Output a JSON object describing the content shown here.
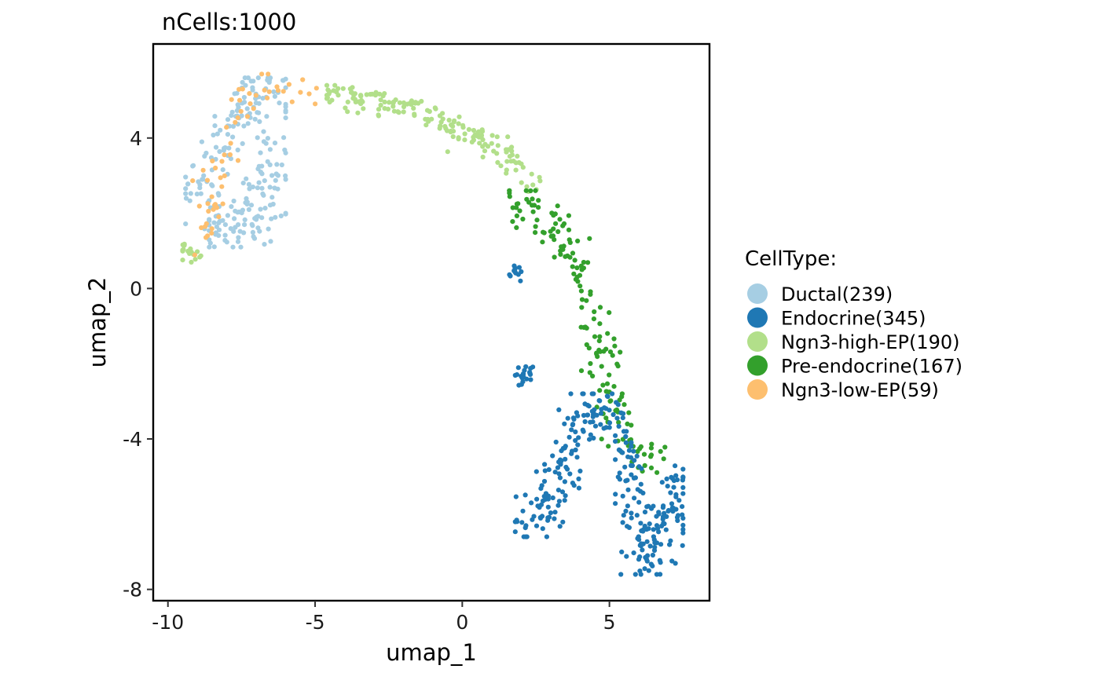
{
  "chart_data": {
    "type": "scatter",
    "title": "nCells:1000",
    "xlabel": "umap_1",
    "ylabel": "umap_2",
    "xlim": [
      -10.5,
      8.4
    ],
    "ylim": [
      -8.3,
      6.5
    ],
    "xticks": [
      -10,
      -5,
      0,
      5
    ],
    "yticks": [
      4,
      0,
      -4,
      -8
    ],
    "xtick_labels": [
      "-10",
      "-5",
      "0",
      "5"
    ],
    "ytick_labels": [
      "4",
      "0",
      "-4",
      "-8"
    ],
    "grid": false,
    "legend_position": "right",
    "legend_title": "CellType:",
    "n_points_total": 1000,
    "series": [
      {
        "name": "Ductal(239)",
        "color": "#A6CEE3",
        "count": 239
      },
      {
        "name": "Endocrine(345)",
        "color": "#1F78B4",
        "count": 345
      },
      {
        "name": "Ngn3-high-EP(190)",
        "color": "#B2DF8A",
        "count": 190
      },
      {
        "name": "Pre-endocrine(167)",
        "color": "#33A02C",
        "count": 167
      },
      {
        "name": "Ngn3-low-EP(59)",
        "color": "#FDBF6F",
        "count": 59
      }
    ],
    "clusters": [
      {
        "series": 0,
        "n": 120,
        "x": [
          -9.4,
          -6.0
        ],
        "y": [
          1.2,
          5.6
        ],
        "spread": 0.35,
        "path": [
          [
            -9.3,
            2.2
          ],
          [
            -8.6,
            3.2
          ],
          [
            -7.6,
            4.4
          ],
          [
            -7.1,
            5.4
          ],
          [
            -6.3,
            5.2
          ],
          [
            -5.5,
            4.8
          ]
        ]
      },
      {
        "series": 0,
        "n": 119,
        "x": [
          -8.6,
          -6.0
        ],
        "y": [
          1.1,
          4.5
        ],
        "spread": 0.4,
        "path": [
          [
            -8.8,
            1.5
          ],
          [
            -7.8,
            1.6
          ],
          [
            -7.0,
            2.0
          ],
          [
            -6.6,
            3.0
          ],
          [
            -6.3,
            4.0
          ]
        ]
      },
      {
        "series": 2,
        "n": 20,
        "x": [
          -9.5,
          -8.8
        ],
        "y": [
          0.7,
          1.2
        ],
        "spread": 0.15,
        "path": [
          [
            -9.5,
            1.0
          ],
          [
            -9.0,
            0.9
          ]
        ]
      },
      {
        "series": 2,
        "n": 170,
        "x": [
          -4.6,
          2.8
        ],
        "y": [
          2.4,
          5.4
        ],
        "spread": 0.18,
        "path": [
          [
            -4.6,
            5.2
          ],
          [
            -3.0,
            5.0
          ],
          [
            -1.5,
            4.8
          ],
          [
            0.0,
            4.2
          ],
          [
            1.0,
            3.8
          ],
          [
            1.8,
            3.3
          ],
          [
            2.4,
            2.6
          ]
        ]
      },
      {
        "series": 4,
        "n": 59,
        "x": [
          -9.3,
          -4.4
        ],
        "y": [
          0.8,
          5.7
        ],
        "spread": 0.25,
        "path": [
          [
            -9.1,
            1.0
          ],
          [
            -8.6,
            2.0
          ],
          [
            -7.9,
            4.2
          ],
          [
            -6.9,
            5.5
          ],
          [
            -5.5,
            5.2
          ],
          [
            -4.6,
            5.3
          ]
        ]
      },
      {
        "series": 3,
        "n": 167,
        "x": [
          1.6,
          7.2
        ],
        "y": [
          -5.2,
          2.6
        ],
        "spread": 0.28,
        "path": [
          [
            1.8,
            2.3
          ],
          [
            3.0,
            1.9
          ],
          [
            3.6,
            1.0
          ],
          [
            4.2,
            0.0
          ],
          [
            4.6,
            -1.0
          ],
          [
            4.8,
            -2.0
          ],
          [
            5.0,
            -2.8
          ],
          [
            5.6,
            -4.2
          ],
          [
            6.8,
            -4.6
          ]
        ]
      },
      {
        "series": 1,
        "n": 12,
        "x": [
          1.6,
          2.1
        ],
        "y": [
          0.2,
          0.6
        ],
        "spread": 0.1,
        "path": [
          [
            1.7,
            0.5
          ],
          [
            2.0,
            0.3
          ]
        ]
      },
      {
        "series": 1,
        "n": 20,
        "x": [
          1.8,
          2.6
        ],
        "y": [
          -2.6,
          -1.9
        ],
        "spread": 0.15,
        "path": [
          [
            2.0,
            -2.4
          ],
          [
            2.4,
            -2.0
          ]
        ]
      },
      {
        "series": 1,
        "n": 150,
        "x": [
          1.8,
          5.8
        ],
        "y": [
          -6.6,
          -2.8
        ],
        "spread": 0.35,
        "path": [
          [
            1.9,
            -6.3
          ],
          [
            2.8,
            -5.8
          ],
          [
            3.4,
            -5.0
          ],
          [
            3.9,
            -4.0
          ],
          [
            4.3,
            -3.0
          ],
          [
            5.2,
            -3.5
          ]
        ]
      },
      {
        "series": 1,
        "n": 163,
        "x": [
          5.2,
          7.5
        ],
        "y": [
          -7.6,
          -3.8
        ],
        "spread": 0.35,
        "path": [
          [
            5.6,
            -4.0
          ],
          [
            5.8,
            -5.5
          ],
          [
            6.2,
            -6.6
          ],
          [
            6.3,
            -7.4
          ],
          [
            7.0,
            -6.2
          ],
          [
            7.3,
            -5.0
          ]
        ]
      }
    ]
  }
}
